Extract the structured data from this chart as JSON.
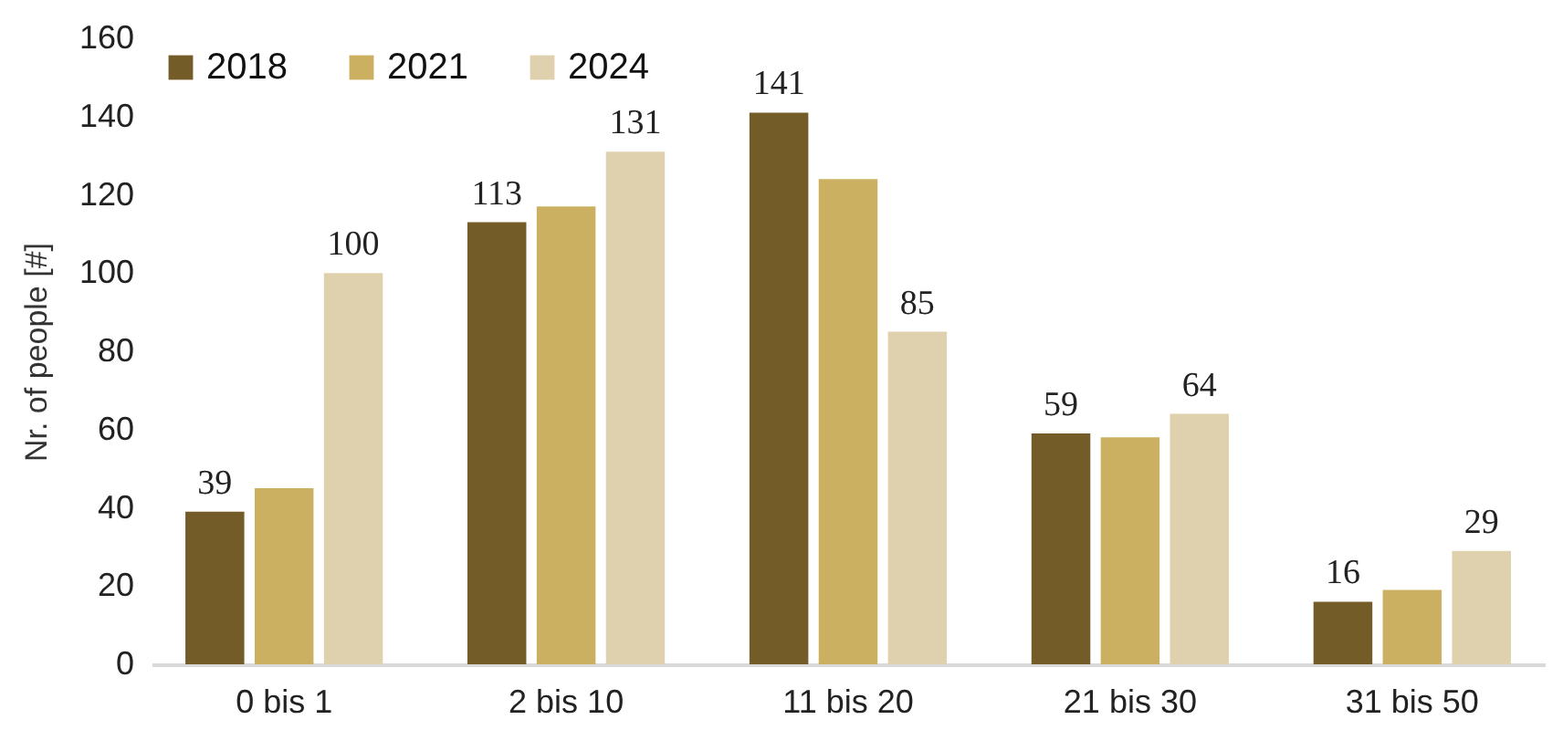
{
  "chart_data": {
    "type": "bar",
    "ylabel": "Nr. of people [#]",
    "categories": [
      "0 bis 1",
      "2 bis 10",
      "11 bis 20",
      "21 bis 30",
      "31 bis 50"
    ],
    "series": [
      {
        "name": "2018",
        "color": "#735c28",
        "values": [
          39,
          113,
          141,
          59,
          16
        ],
        "value_labels": [
          "39",
          "113",
          "141",
          "59",
          "16"
        ]
      },
      {
        "name": "2021",
        "color": "#cbb062",
        "values": [
          45,
          117,
          124,
          58,
          19
        ]
      },
      {
        "name": "2024",
        "color": "#e0d1ae",
        "values": [
          100,
          131,
          85,
          64,
          29
        ],
        "value_labels": [
          "100",
          "131",
          "85",
          "64",
          "29"
        ]
      }
    ],
    "ylim": [
      0,
      160
    ],
    "yticks": [
      0,
      20,
      40,
      60,
      80,
      100,
      120,
      140,
      160
    ],
    "grid": false,
    "legend": "top left"
  }
}
